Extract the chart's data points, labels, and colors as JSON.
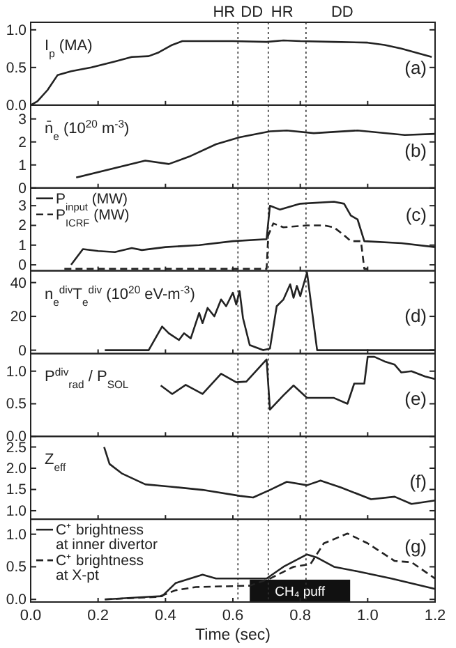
{
  "chart_data": [
    {
      "type": "line",
      "ylabel": "I$_{p}$ (MA)",
      "annotations": [
        "HR",
        "DD",
        "HR",
        "DD",
        "(a)"
      ],
      "xlim": [
        0,
        1.2
      ],
      "xticks": [
        0,
        0.2,
        0.4,
        0.6,
        0.8,
        1,
        1.2
      ],
      "ylim": [
        0,
        1.1
      ],
      "yticks": [
        {
          "value": 0,
          "label": "0.0"
        },
        {
          "value": 0.5,
          "label": "0.5"
        },
        {
          "value": 1,
          "label": "1.0"
        }
      ],
      "tick_labels": "y",
      "legend": false,
      "ref_lines": [
        {
          "axis": "x",
          "value": 0.615,
          "label": null,
          "line_style": "dotted"
        },
        {
          "axis": "x",
          "value": 0.705,
          "label": null,
          "line_style": "dotted"
        },
        {
          "axis": "x",
          "value": 0.817,
          "label": null,
          "line_style": "dotted"
        }
      ],
      "series": [
        {
          "color": "#222222",
          "x": [
            0,
            0.02,
            0.05,
            0.08,
            0.12,
            0.18,
            0.25,
            0.3,
            0.35,
            0.38,
            0.42,
            0.45,
            0.6,
            0.7,
            0.75,
            0.8,
            0.9,
            1.0,
            1.05,
            1.1,
            1.19
          ],
          "values": [
            0,
            0.05,
            0.2,
            0.4,
            0.45,
            0.5,
            0.58,
            0.64,
            0.65,
            0.7,
            0.8,
            0.85,
            0.85,
            0.84,
            0.86,
            0.85,
            0.84,
            0.83,
            0.8,
            0.75,
            0.64
          ]
        }
      ]
    },
    {
      "type": "line",
      "ylabel": "n̄$_{e}$ (10$^{20}$ m$^{-3}$)",
      "annotations": [
        "(b)"
      ],
      "xlim": [
        0,
        1.2
      ],
      "xticks": [
        0,
        0.2,
        0.4,
        0.6,
        0.8,
        1,
        1.2
      ],
      "ylim": [
        0,
        3.6
      ],
      "yticks": [
        0,
        1,
        2,
        3
      ],
      "tick_labels": "y",
      "legend": false,
      "ref_lines": [
        {
          "axis": "x",
          "value": 0.615,
          "label": null,
          "line_style": "dotted"
        },
        {
          "axis": "x",
          "value": 0.705,
          "label": null,
          "line_style": "dotted"
        },
        {
          "axis": "x",
          "value": 0.817,
          "label": null,
          "line_style": "dotted"
        }
      ],
      "series": [
        {
          "color": "#222222",
          "x": [
            0.135,
            0.34,
            0.41,
            0.47,
            0.55,
            0.62,
            0.71,
            0.76,
            0.84,
            0.97,
            1.11,
            1.2
          ],
          "values": [
            0.45,
            1.19,
            1.04,
            1.36,
            1.9,
            2.2,
            2.46,
            2.5,
            2.38,
            2.5,
            2.3,
            2.35
          ]
        }
      ]
    },
    {
      "type": "line",
      "annotations": [
        "(c)"
      ],
      "xlim": [
        0,
        1.2
      ],
      "xticks": [
        0,
        0.2,
        0.4,
        0.6,
        0.8,
        1,
        1.2
      ],
      "ylim": [
        -0.3,
        3.9
      ],
      "yticks": [
        0,
        1,
        2,
        3
      ],
      "tick_labels": "y",
      "legend": "top left",
      "ref_lines": [
        {
          "axis": "x",
          "value": 0.615,
          "label": null,
          "line_style": "dotted"
        },
        {
          "axis": "x",
          "value": 0.705,
          "label": null,
          "line_style": "dotted"
        },
        {
          "axis": "x",
          "value": 0.817,
          "label": null,
          "line_style": "dotted"
        }
      ],
      "series": [
        {
          "name": "P$_{input}$ (MW)",
          "color": "#222222",
          "line_style": "solid",
          "x": [
            0.12,
            0.155,
            0.2,
            0.25,
            0.3,
            0.33,
            0.4,
            0.5,
            0.6,
            0.7,
            0.71,
            0.74,
            0.8,
            0.9,
            0.93,
            0.95,
            0.97,
            0.99,
            1.1,
            1.2
          ],
          "values": [
            0,
            0.8,
            0.7,
            0.65,
            0.85,
            0.75,
            0.9,
            1.0,
            1.2,
            1.3,
            3.0,
            2.8,
            3.1,
            3.2,
            3.1,
            2.5,
            2.3,
            1.2,
            1.1,
            0.9
          ]
        },
        {
          "name": "P$_{ICRF}$ (MW)",
          "color": "#222222",
          "line_style": "dashed",
          "x": [
            0.1,
            0.7,
            0.705,
            0.72,
            0.75,
            0.82,
            0.87,
            0.9,
            0.93,
            0.95,
            0.98,
            0.99,
            1.0
          ],
          "values": [
            -0.2,
            -0.2,
            1.5,
            2.1,
            1.9,
            2.0,
            2.0,
            1.9,
            1.5,
            1.2,
            1.2,
            -0.2,
            -0.2
          ]
        }
      ]
    },
    {
      "type": "line",
      "ylabel": "n$_{e}$$^{div}$T$_{e}$$^{div}$ (10$^{20}$ eV-m$^{-3}$)",
      "annotations": [
        "(d)"
      ],
      "xlim": [
        0,
        1.2
      ],
      "xticks": [
        0,
        0.2,
        0.4,
        0.6,
        0.8,
        1,
        1.2
      ],
      "ylim": [
        -2,
        47
      ],
      "yticks": [
        0,
        20,
        40
      ],
      "tick_labels": "y",
      "legend": false,
      "ref_lines": [
        {
          "axis": "x",
          "value": 0.615,
          "label": null,
          "line_style": "dotted"
        },
        {
          "axis": "x",
          "value": 0.705,
          "label": null,
          "line_style": "dotted"
        },
        {
          "axis": "x",
          "value": 0.817,
          "label": null,
          "line_style": "dotted"
        }
      ],
      "series": [
        {
          "color": "#222222",
          "x": [
            0.22,
            0.35,
            0.39,
            0.41,
            0.44,
            0.455,
            0.475,
            0.5,
            0.51,
            0.525,
            0.545,
            0.565,
            0.58,
            0.6,
            0.61,
            0.62,
            0.63,
            0.65,
            0.69,
            0.71,
            0.73,
            0.75,
            0.77,
            0.78,
            0.79,
            0.8,
            0.82,
            0.85,
            1.2
          ],
          "values": [
            0,
            0,
            14,
            10,
            6,
            10,
            7,
            22,
            16,
            25,
            20,
            30,
            26,
            34,
            27,
            35,
            19,
            3,
            0,
            1,
            26,
            30,
            39,
            31,
            38,
            32,
            46,
            0,
            0
          ]
        }
      ]
    },
    {
      "type": "line",
      "ylabel": "P$^{div}$$_{rad}$ / P$_{SOL}$",
      "annotations": [
        "(e)"
      ],
      "xlim": [
        0,
        1.2
      ],
      "xticks": [
        0,
        0.2,
        0.4,
        0.6,
        0.8,
        1,
        1.2
      ],
      "ylim": [
        0,
        1.27
      ],
      "yticks": [
        {
          "value": 0,
          "label": "0.0"
        },
        {
          "value": 0.5,
          "label": "0.5"
        },
        {
          "value": 1,
          "label": "1.0"
        }
      ],
      "tick_labels": "y",
      "legend": false,
      "ref_lines": [
        {
          "axis": "x",
          "value": 0.615,
          "label": null,
          "line_style": "dotted"
        },
        {
          "axis": "x",
          "value": 0.705,
          "label": null,
          "line_style": "dotted"
        },
        {
          "axis": "x",
          "value": 0.817,
          "label": null,
          "line_style": "dotted"
        }
      ],
      "series": [
        {
          "color": "#222222",
          "x": [
            0.386,
            0.42,
            0.46,
            0.51,
            0.565,
            0.61,
            0.64,
            0.7,
            0.71,
            0.75,
            0.78,
            0.82,
            0.9,
            0.94,
            0.96,
            0.99,
            1.0,
            1.02,
            1.05,
            1.08,
            1.1,
            1.13,
            1.17,
            1.2
          ],
          "values": [
            0.78,
            0.65,
            0.79,
            0.65,
            0.96,
            0.83,
            0.84,
            1.18,
            0.41,
            0.63,
            0.78,
            0.59,
            0.59,
            0.5,
            0.81,
            0.81,
            1.22,
            1.22,
            1.15,
            1.1,
            0.98,
            1.0,
            0.92,
            0.88
          ]
        }
      ]
    },
    {
      "type": "line",
      "ylabel": "Z$_{eff}$",
      "annotations": [
        "(f)"
      ],
      "xlim": [
        0,
        1.2
      ],
      "xticks": [
        0,
        0.2,
        0.4,
        0.6,
        0.8,
        1,
        1.2
      ],
      "ylim": [
        0.8,
        2.75
      ],
      "yticks": [
        {
          "value": 1,
          "label": "1.0"
        },
        {
          "value": 1.5,
          "label": "1.5"
        },
        {
          "value": 2,
          "label": "2.0"
        },
        {
          "value": 2.5,
          "label": "2.5"
        }
      ],
      "tick_labels": "y",
      "legend": false,
      "ref_lines": [
        {
          "axis": "x",
          "value": 0.615,
          "label": null,
          "line_style": "dotted"
        },
        {
          "axis": "x",
          "value": 0.705,
          "label": null,
          "line_style": "dotted"
        },
        {
          "axis": "x",
          "value": 0.817,
          "label": null,
          "line_style": "dotted"
        }
      ],
      "series": [
        {
          "color": "#222222",
          "x": [
            0.218,
            0.234,
            0.27,
            0.34,
            0.41,
            0.51,
            0.62,
            0.66,
            0.71,
            0.76,
            0.82,
            0.86,
            0.92,
            1.01,
            1.08,
            1.13,
            1.2
          ],
          "values": [
            2.5,
            2.1,
            1.88,
            1.62,
            1.57,
            1.49,
            1.35,
            1.31,
            1.49,
            1.68,
            1.6,
            1.71,
            1.55,
            1.27,
            1.33,
            1.16,
            1.24
          ]
        }
      ]
    },
    {
      "type": "line",
      "xlabel": "Time (sec)",
      "annotations": [
        "(g)"
      ],
      "xlim": [
        0,
        1.2
      ],
      "xticks": [
        {
          "value": 0,
          "label": "0.0"
        },
        {
          "value": 0.2,
          "label": "0.2"
        },
        {
          "value": 0.4,
          "label": "0.4"
        },
        {
          "value": 0.6,
          "label": "0.6"
        },
        {
          "value": 0.8,
          "label": "0.8"
        },
        {
          "value": 1,
          "label": "1.0"
        },
        {
          "value": 1.2,
          "label": "1.2"
        }
      ],
      "ylim": [
        -0.04,
        1.23
      ],
      "yticks": [
        {
          "value": 0,
          "label": "0.0"
        },
        {
          "value": 0.5,
          "label": "0.5"
        },
        {
          "value": 1,
          "label": "1.0"
        }
      ],
      "legend": "top left",
      "ref_lines": [
        {
          "axis": "x",
          "value": 0.615,
          "label": null,
          "line_style": "dotted"
        },
        {
          "axis": "x",
          "value": 0.705,
          "label": null,
          "line_style": "dotted"
        },
        {
          "axis": "x",
          "value": 0.817,
          "label": null,
          "line_style": "dotted"
        }
      ],
      "bands": [
        {
          "axis": "x",
          "from": 0.65,
          "to": 0.948,
          "label": "CH₄ puff",
          "color": "#111111"
        }
      ],
      "series": [
        {
          "name": "C⁺ brightness at inner divertor",
          "color": "#222222",
          "line_style": "solid",
          "x": [
            0.22,
            0.35,
            0.39,
            0.43,
            0.51,
            0.55,
            0.61,
            0.7,
            0.75,
            0.82,
            0.85,
            0.9,
            0.97,
            1.07,
            1.2
          ],
          "values": [
            0,
            0.04,
            0.05,
            0.25,
            0.38,
            0.32,
            0.32,
            0.32,
            0.5,
            0.69,
            0.64,
            0.5,
            0.43,
            0.32,
            0.16
          ]
        },
        {
          "name": "C⁺ brightness at X-pt",
          "color": "#222222",
          "line_style": "dashed",
          "x": [
            0.22,
            0.38,
            0.43,
            0.49,
            0.65,
            0.71,
            0.78,
            0.83,
            0.87,
            0.94,
            1.0,
            1.08,
            1.13,
            1.2
          ],
          "values": [
            0,
            0.04,
            0.14,
            0.19,
            0.21,
            0.32,
            0.5,
            0.54,
            0.86,
            1.01,
            0.86,
            0.59,
            0.57,
            0.32
          ]
        }
      ]
    }
  ]
}
